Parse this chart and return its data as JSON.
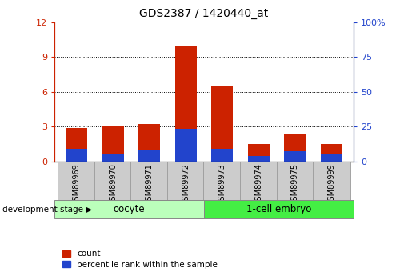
{
  "title": "GDS2387 / 1420440_at",
  "samples": [
    "GSM89969",
    "GSM89970",
    "GSM89971",
    "GSM89972",
    "GSM89973",
    "GSM89974",
    "GSM89975",
    "GSM89999"
  ],
  "count_values": [
    2.9,
    3.05,
    3.2,
    9.9,
    6.5,
    1.5,
    2.3,
    1.5
  ],
  "percentile_values": [
    1.1,
    0.7,
    1.0,
    2.8,
    1.1,
    0.5,
    0.9,
    0.6
  ],
  "left_ylim": [
    0,
    12
  ],
  "right_ylim": [
    0,
    100
  ],
  "left_yticks": [
    0,
    3,
    6,
    9,
    12
  ],
  "right_yticks": [
    0,
    25,
    50,
    75,
    100
  ],
  "left_yticklabels": [
    "0",
    "3",
    "6",
    "9",
    "12"
  ],
  "right_yticklabels": [
    "0",
    "25",
    "50",
    "75",
    "100%"
  ],
  "count_color": "#cc2200",
  "percentile_color": "#2244cc",
  "bar_width": 0.6,
  "oocyte_color": "#bbffbb",
  "embryo_color": "#44ee44",
  "oocyte_label": "oocyte",
  "embryo_label": "1-cell embryo",
  "oocyte_count": 4,
  "legend_count_label": "count",
  "legend_percentile_label": "percentile rank within the sample",
  "dev_stage_label": "development stage",
  "tick_bg_color": "#cccccc",
  "tick_border_color": "#999999"
}
